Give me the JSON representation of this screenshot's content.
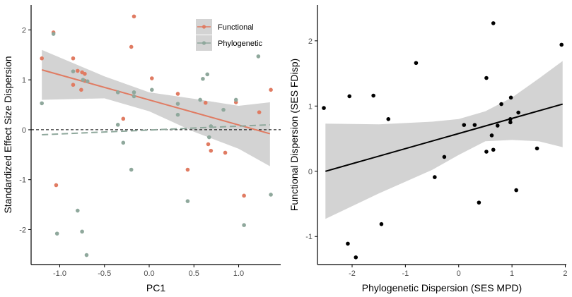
{
  "chart_data": [
    {
      "type": "scatter",
      "title": "",
      "xlabel": "PC1",
      "ylabel": "Standardized Effect Size Dispersion",
      "xlim": [
        -1.32,
        1.47
      ],
      "ylim": [
        -2.7,
        2.5
      ],
      "x_ticks": [
        -1.0,
        -0.5,
        0.0,
        0.5,
        1.0
      ],
      "x_tick_labels": [
        "-1.0",
        "-0.5",
        "0.0",
        "0.5",
        "1.0"
      ],
      "y_ticks": [
        -2,
        -1,
        0,
        1,
        2
      ],
      "y_tick_labels": [
        "-2",
        "-1",
        "0",
        "1",
        "2"
      ],
      "grid": false,
      "reference_line": {
        "y": 0,
        "style": "dashed",
        "color": "#000000"
      },
      "legend": {
        "placement": "top-right"
      },
      "series": [
        {
          "name": "Functional",
          "color": "#e07b62",
          "points": [
            [
              -1.2,
              1.43
            ],
            [
              -1.07,
              1.95
            ],
            [
              -1.04,
              -1.11
            ],
            [
              -0.85,
              1.43
            ],
            [
              -0.85,
              0.9
            ],
            [
              -0.8,
              1.18
            ],
            [
              -0.76,
              0.8
            ],
            [
              -0.75,
              1.15
            ],
            [
              -0.72,
              1.12
            ],
            [
              -0.72,
              0.98
            ],
            [
              -0.29,
              0.22
            ],
            [
              -0.2,
              1.66
            ],
            [
              -0.17,
              2.27
            ],
            [
              0.03,
              1.03
            ],
            [
              0.32,
              0.72
            ],
            [
              0.43,
              -0.8
            ],
            [
              0.63,
              0.54
            ],
            [
              0.66,
              -0.29
            ],
            [
              0.69,
              -0.42
            ],
            [
              0.85,
              -0.46
            ],
            [
              0.97,
              0.55
            ],
            [
              1.06,
              -1.32
            ],
            [
              1.23,
              0.35
            ],
            [
              1.36,
              0.8
            ]
          ],
          "fit": {
            "line": [
              [
                -1.2,
                1.2
              ],
              [
                1.35,
                -0.08
              ]
            ],
            "ci_upper": [
              [
                -1.2,
                1.6
              ],
              [
                -0.5,
                1.07
              ],
              [
                0.0,
                0.75
              ],
              [
                0.5,
                0.62
              ],
              [
                1.0,
                0.48
              ],
              [
                1.35,
                0.55
              ]
            ],
            "ci_lower": [
              [
                -1.2,
                0.6
              ],
              [
                -0.5,
                0.63
              ],
              [
                0.0,
                0.37
              ],
              [
                0.5,
                -0.04
              ],
              [
                1.0,
                -0.38
              ],
              [
                1.35,
                -0.73
              ]
            ]
          }
        },
        {
          "name": "Phylogenetic",
          "color": "#8fa89c",
          "points": [
            [
              -1.2,
              0.53
            ],
            [
              -1.07,
              1.92
            ],
            [
              -1.03,
              -2.08
            ],
            [
              -0.85,
              1.17
            ],
            [
              -0.8,
              -1.62
            ],
            [
              -0.75,
              -2.04
            ],
            [
              -0.74,
              1.0
            ],
            [
              -0.7,
              -2.51
            ],
            [
              -0.69,
              0.97
            ],
            [
              -0.35,
              0.75
            ],
            [
              -0.35,
              0.1
            ],
            [
              -0.29,
              -0.26
            ],
            [
              -0.2,
              -0.8
            ],
            [
              -0.17,
              0.75
            ],
            [
              -0.17,
              0.67
            ],
            [
              0.03,
              0.8
            ],
            [
              0.32,
              0.52
            ],
            [
              0.32,
              0.3
            ],
            [
              0.43,
              -1.43
            ],
            [
              0.57,
              0.6
            ],
            [
              0.6,
              1.02
            ],
            [
              0.65,
              1.11
            ],
            [
              0.67,
              -0.15
            ],
            [
              0.69,
              0.07
            ],
            [
              0.83,
              0.4
            ],
            [
              0.97,
              0.6
            ],
            [
              1.06,
              -1.91
            ],
            [
              1.22,
              1.47
            ],
            [
              1.36,
              -1.3
            ]
          ],
          "fit": {
            "line": [
              [
                -1.2,
                -0.1
              ],
              [
                1.35,
                0.1
              ]
            ]
          }
        }
      ]
    },
    {
      "type": "scatter",
      "title": "",
      "xlabel": "Phylogenetic Dispersion (SES MPD)",
      "ylabel": "Functional Dispersion (SES FDisp)",
      "xlim": [
        -2.65,
        2.02
      ],
      "ylim": [
        -1.43,
        2.55
      ],
      "x_ticks": [
        -2,
        -1,
        0,
        1,
        2
      ],
      "x_tick_labels": [
        "-2",
        "-1",
        "0",
        "1",
        "2"
      ],
      "y_ticks": [
        -1,
        0,
        1,
        2
      ],
      "y_tick_labels": [
        "-1",
        "0",
        "1",
        "2"
      ],
      "grid": false,
      "series": [
        {
          "name": "",
          "color": "#000000",
          "points": [
            [
              -2.53,
              0.97
            ],
            [
              -2.08,
              -1.11
            ],
            [
              -2.05,
              1.15
            ],
            [
              -1.93,
              -1.32
            ],
            [
              -1.6,
              1.16
            ],
            [
              -1.45,
              -0.81
            ],
            [
              -1.32,
              0.8
            ],
            [
              -0.8,
              1.66
            ],
            [
              -0.45,
              -0.09
            ],
            [
              -0.27,
              0.22
            ],
            [
              0.1,
              0.71
            ],
            [
              0.3,
              0.71
            ],
            [
              0.38,
              -0.48
            ],
            [
              0.52,
              1.43
            ],
            [
              0.52,
              0.3
            ],
            [
              0.62,
              0.55
            ],
            [
              0.65,
              2.27
            ],
            [
              0.65,
              0.33
            ],
            [
              0.73,
              0.7
            ],
            [
              0.8,
              1.03
            ],
            [
              0.97,
              0.8
            ],
            [
              0.97,
              0.75
            ],
            [
              0.98,
              1.13
            ],
            [
              1.08,
              -0.29
            ],
            [
              1.12,
              0.9
            ],
            [
              1.47,
              0.35
            ],
            [
              1.93,
              1.94
            ]
          ],
          "fit": {
            "line": [
              [
                -2.5,
                0.0
              ],
              [
                1.95,
                1.03
              ]
            ],
            "ci_upper": [
              [
                -2.5,
                0.73
              ],
              [
                -1.5,
                0.72
              ],
              [
                -0.5,
                0.76
              ],
              [
                0.0,
                0.8
              ],
              [
                0.5,
                0.92
              ],
              [
                1.0,
                1.13
              ],
              [
                1.5,
                1.42
              ],
              [
                1.95,
                1.69
              ]
            ],
            "ci_lower": [
              [
                -2.5,
                -0.73
              ],
              [
                -1.5,
                -0.34
              ],
              [
                -0.5,
                0.02
              ],
              [
                0.0,
                0.25
              ],
              [
                0.5,
                0.46
              ],
              [
                1.0,
                0.48
              ],
              [
                1.5,
                0.46
              ],
              [
                1.95,
                0.37
              ]
            ]
          }
        }
      ]
    }
  ]
}
